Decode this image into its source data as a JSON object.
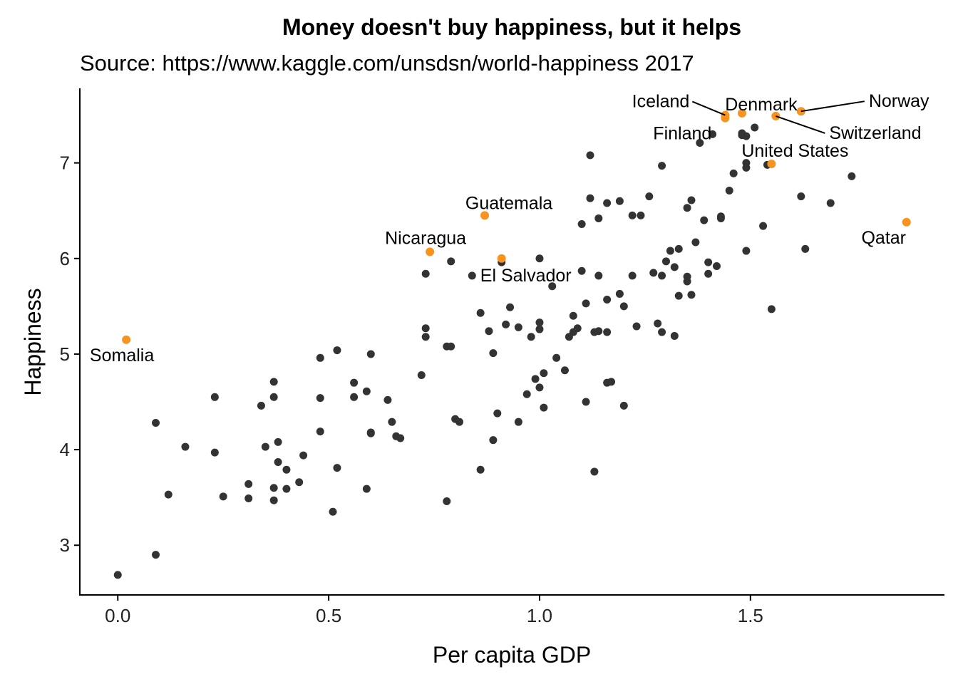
{
  "chart_data": {
    "type": "scatter",
    "title": "Money doesn't buy happiness, but it helps",
    "subtitle": "Source: https://www.kaggle.com/unsdsn/world-happiness 2017",
    "xlabel": "Per capita GDP",
    "ylabel": "Happiness",
    "xlim": [
      -0.09,
      1.96
    ],
    "ylim": [
      2.48,
      7.78
    ],
    "xticks": [
      0.0,
      0.5,
      1.0,
      1.5
    ],
    "xtick_labels": [
      "0.0",
      "0.5",
      "1.0",
      "1.5"
    ],
    "yticks": [
      3,
      4,
      5,
      6,
      7
    ],
    "ytick_labels": [
      "3",
      "4",
      "5",
      "6",
      "7"
    ],
    "grid": false,
    "legend": "none",
    "colors": {
      "points": "#333333",
      "highlight": "#F7931E"
    },
    "highlighted": [
      {
        "name": "Somalia",
        "x": 0.02,
        "y": 5.15
      },
      {
        "name": "Nicaragua",
        "x": 0.74,
        "y": 6.07
      },
      {
        "name": "Guatemala",
        "x": 0.87,
        "y": 6.45
      },
      {
        "name": "El Salvador",
        "x": 0.91,
        "y": 6.0
      },
      {
        "name": "Iceland",
        "x": 1.44,
        "y": 7.5
      },
      {
        "name": "Denmark",
        "x": 1.48,
        "y": 7.52
      },
      {
        "name": "Switzerland",
        "x": 1.56,
        "y": 7.49
      },
      {
        "name": "Norway",
        "x": 1.62,
        "y": 7.54
      },
      {
        "name": "Finland",
        "x": 1.44,
        "y": 7.47
      },
      {
        "name": "United States",
        "x": 1.55,
        "y": 6.99
      },
      {
        "name": "Qatar",
        "x": 1.87,
        "y": 6.38
      }
    ],
    "points": [
      [
        0.0,
        2.69
      ],
      [
        0.09,
        2.9
      ],
      [
        0.09,
        4.28
      ],
      [
        0.12,
        3.53
      ],
      [
        0.16,
        4.03
      ],
      [
        0.23,
        4.55
      ],
      [
        0.23,
        3.97
      ],
      [
        0.25,
        3.51
      ],
      [
        0.31,
        3.64
      ],
      [
        0.31,
        3.49
      ],
      [
        0.34,
        4.46
      ],
      [
        0.35,
        4.03
      ],
      [
        0.37,
        4.71
      ],
      [
        0.37,
        4.55
      ],
      [
        0.37,
        3.6
      ],
      [
        0.37,
        3.47
      ],
      [
        0.38,
        3.87
      ],
      [
        0.38,
        4.08
      ],
      [
        0.4,
        3.59
      ],
      [
        0.4,
        3.79
      ],
      [
        0.43,
        3.66
      ],
      [
        0.44,
        3.94
      ],
      [
        0.48,
        4.96
      ],
      [
        0.48,
        4.54
      ],
      [
        0.48,
        4.19
      ],
      [
        0.51,
        3.35
      ],
      [
        0.52,
        5.04
      ],
      [
        0.52,
        3.81
      ],
      [
        0.56,
        4.7
      ],
      [
        0.56,
        4.55
      ],
      [
        0.59,
        4.61
      ],
      [
        0.59,
        3.59
      ],
      [
        0.6,
        5.0
      ],
      [
        0.6,
        4.18
      ],
      [
        0.6,
        4.17
      ],
      [
        0.64,
        4.52
      ],
      [
        0.65,
        4.29
      ],
      [
        0.66,
        4.14
      ],
      [
        0.67,
        4.12
      ],
      [
        0.72,
        4.78
      ],
      [
        0.73,
        5.84
      ],
      [
        0.73,
        5.27
      ],
      [
        0.73,
        5.18
      ],
      [
        0.78,
        3.46
      ],
      [
        0.78,
        5.08
      ],
      [
        0.79,
        5.08
      ],
      [
        0.79,
        5.97
      ],
      [
        0.8,
        4.32
      ],
      [
        0.81,
        4.29
      ],
      [
        0.84,
        5.82
      ],
      [
        0.86,
        5.43
      ],
      [
        0.86,
        3.79
      ],
      [
        0.88,
        5.24
      ],
      [
        0.89,
        5.01
      ],
      [
        0.89,
        4.1
      ],
      [
        0.9,
        4.38
      ],
      [
        0.91,
        5.96
      ],
      [
        0.92,
        5.31
      ],
      [
        0.93,
        5.49
      ],
      [
        0.95,
        5.28
      ],
      [
        0.95,
        4.29
      ],
      [
        0.97,
        4.58
      ],
      [
        0.98,
        5.18
      ],
      [
        0.99,
        4.74
      ],
      [
        1.0,
        5.33
      ],
      [
        1.0,
        5.26
      ],
      [
        1.0,
        4.65
      ],
      [
        1.0,
        6.0
      ],
      [
        1.01,
        4.8
      ],
      [
        1.01,
        4.44
      ],
      [
        1.03,
        5.71
      ],
      [
        1.04,
        4.96
      ],
      [
        1.06,
        4.83
      ],
      [
        1.07,
        5.18
      ],
      [
        1.08,
        5.4
      ],
      [
        1.08,
        5.23
      ],
      [
        1.09,
        5.27
      ],
      [
        1.1,
        6.36
      ],
      [
        1.1,
        5.87
      ],
      [
        1.11,
        5.53
      ],
      [
        1.11,
        4.5
      ],
      [
        1.12,
        6.63
      ],
      [
        1.12,
        7.08
      ],
      [
        1.13,
        5.23
      ],
      [
        1.13,
        3.77
      ],
      [
        1.14,
        6.42
      ],
      [
        1.14,
        5.24
      ],
      [
        1.14,
        5.82
      ],
      [
        1.16,
        6.58
      ],
      [
        1.16,
        5.57
      ],
      [
        1.16,
        5.23
      ],
      [
        1.16,
        4.7
      ],
      [
        1.17,
        4.71
      ],
      [
        1.19,
        6.6
      ],
      [
        1.19,
        5.63
      ],
      [
        1.2,
        5.5
      ],
      [
        1.2,
        4.46
      ],
      [
        1.22,
        6.45
      ],
      [
        1.22,
        5.82
      ],
      [
        1.23,
        5.29
      ],
      [
        1.24,
        6.45
      ],
      [
        1.26,
        6.65
      ],
      [
        1.27,
        5.85
      ],
      [
        1.28,
        5.32
      ],
      [
        1.29,
        5.82
      ],
      [
        1.29,
        6.97
      ],
      [
        1.29,
        5.23
      ],
      [
        1.3,
        5.97
      ],
      [
        1.31,
        6.08
      ],
      [
        1.32,
        5.19
      ],
      [
        1.32,
        5.91
      ],
      [
        1.33,
        5.61
      ],
      [
        1.33,
        6.1
      ],
      [
        1.35,
        5.76
      ],
      [
        1.35,
        5.81
      ],
      [
        1.35,
        6.53
      ],
      [
        1.36,
        6.61
      ],
      [
        1.36,
        5.62
      ],
      [
        1.37,
        6.17
      ],
      [
        1.38,
        7.21
      ],
      [
        1.39,
        6.4
      ],
      [
        1.4,
        5.96
      ],
      [
        1.4,
        5.84
      ],
      [
        1.41,
        7.3
      ],
      [
        1.42,
        5.92
      ],
      [
        1.43,
        6.44
      ],
      [
        1.43,
        6.42
      ],
      [
        1.45,
        6.71
      ],
      [
        1.46,
        6.89
      ],
      [
        1.48,
        7.31
      ],
      [
        1.48,
        7.29
      ],
      [
        1.49,
        7.0
      ],
      [
        1.49,
        6.95
      ],
      [
        1.49,
        6.08
      ],
      [
        1.49,
        7.28
      ],
      [
        1.51,
        7.37
      ],
      [
        1.53,
        6.34
      ],
      [
        1.54,
        6.98
      ],
      [
        1.55,
        5.47
      ],
      [
        1.62,
        6.65
      ],
      [
        1.63,
        6.1
      ],
      [
        1.69,
        6.58
      ],
      [
        1.74,
        6.86
      ]
    ]
  }
}
